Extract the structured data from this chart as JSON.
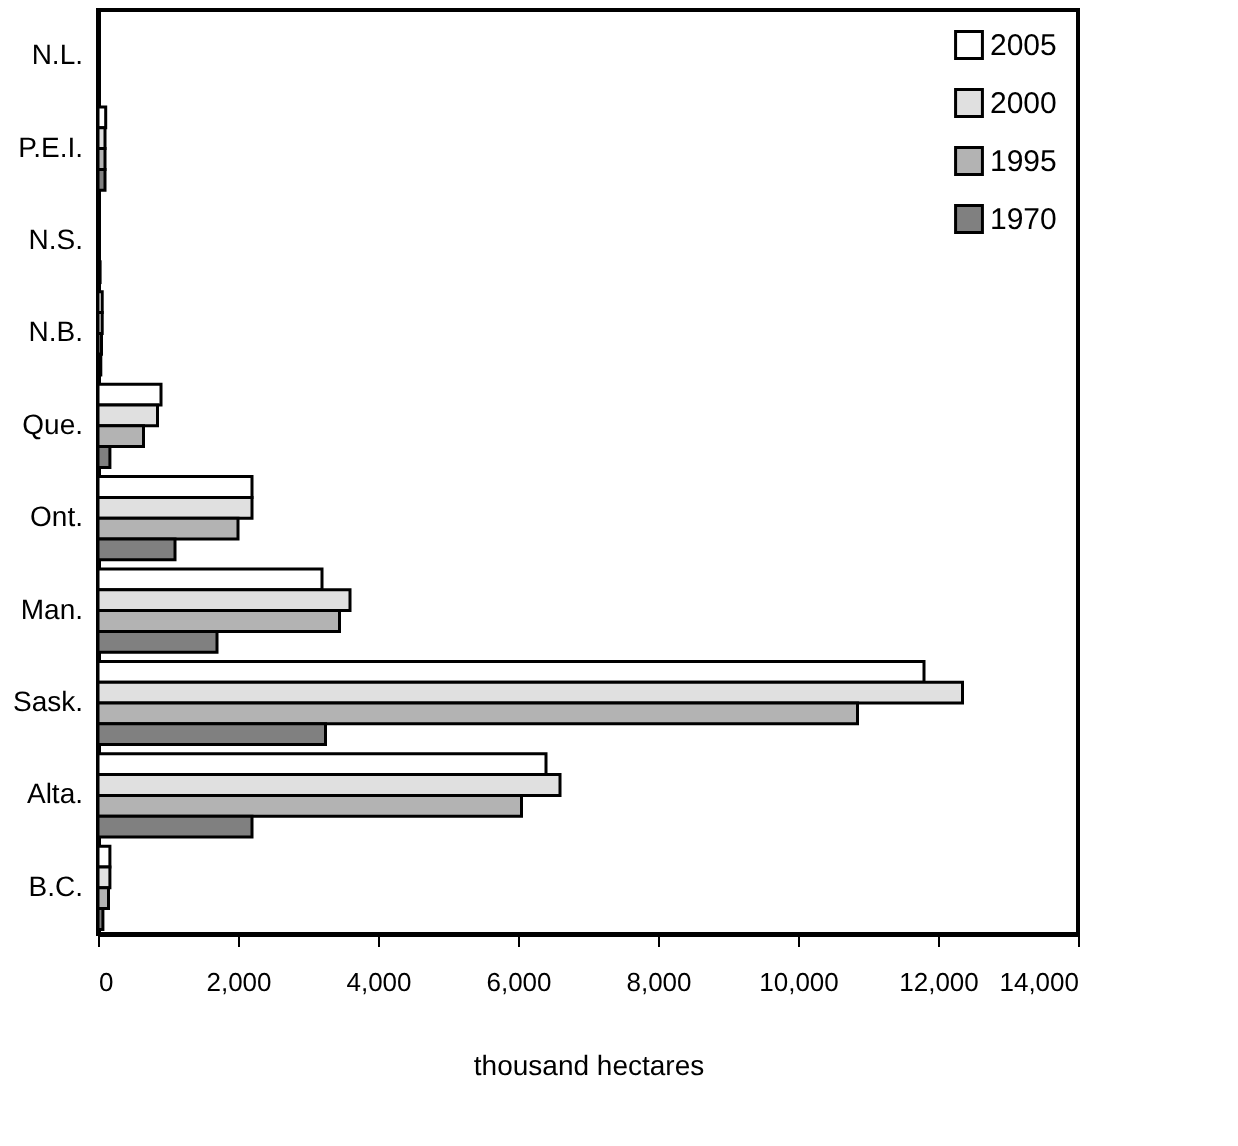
{
  "chart_data": {
    "type": "bar",
    "orientation": "horizontal",
    "xlabel": "thousand hectares",
    "categories": [
      "N.L.",
      "P.E.I.",
      "N.S.",
      "N.B.",
      "Que.",
      "Ont.",
      "Man.",
      "Sask.",
      "Alta.",
      "B.C."
    ],
    "series": [
      {
        "name": "2005",
        "color": "#ffffff",
        "values": [
          null,
          110,
          null,
          60,
          900,
          2200,
          3200,
          11800,
          6400,
          170
        ]
      },
      {
        "name": "2000",
        "color": "#e0e0e0",
        "values": [
          null,
          100,
          null,
          60,
          850,
          2200,
          3600,
          12350,
          6600,
          170
        ]
      },
      {
        "name": "1995",
        "color": "#b3b3b3",
        "values": [
          null,
          100,
          null,
          50,
          650,
          2000,
          3450,
          10850,
          6050,
          150
        ]
      },
      {
        "name": "1970",
        "color": "#808080",
        "values": [
          null,
          100,
          30,
          40,
          170,
          1100,
          1700,
          3250,
          2200,
          70
        ]
      }
    ],
    "xlim": [
      0,
      14000
    ],
    "xticks": [
      0,
      {
        "value": 2000,
        "label": "2,000"
      },
      {
        "value": 4000,
        "label": "4,000"
      },
      {
        "value": 6000,
        "label": "6,000"
      },
      {
        "value": 8000,
        "label": "8,000"
      },
      {
        "value": 10000,
        "label": "10,000"
      },
      {
        "value": 12000,
        "label": "12,000"
      },
      {
        "value": 14000,
        "label": "14,000"
      }
    ],
    "grid": false,
    "legend": "top right"
  }
}
